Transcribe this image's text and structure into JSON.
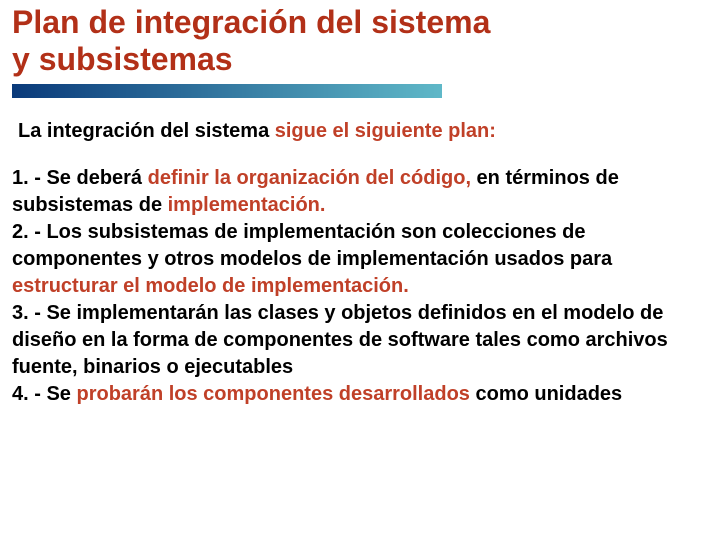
{
  "colors": {
    "title": "#b23018",
    "text": "#000000",
    "accent": "#c04028",
    "bar_start": "#0a3a7a",
    "bar_end": "#5fb8c8",
    "background": "#ffffff"
  },
  "title_line1": "Plan de integración del sistema",
  "title_line2": "y subsistemas",
  "intro_pre": "La integración del sistema ",
  "intro_hl": "sigue el siguiente plan:",
  "items": {
    "p1_a": "1. - Se deberá ",
    "p1_b": "definir la organización del código,",
    "p1_c": " en términos de subsistemas de ",
    "p1_d": "implementación.",
    "p2_a": "2. - Los subsistemas de implementación son colecciones de componentes y otros modelos de implementación usados para ",
    "p2_b": "estructurar el modelo de implementación.",
    "p3_a": "3. - Se implementarán las clases y objetos definidos en el modelo de diseño en la forma de componentes de software tales como archivos fuente, binarios o ejecutables",
    "p4_a": "4. - Se ",
    "p4_b": "probarán los componentes desarrollados",
    "p4_c": " como unidades"
  }
}
